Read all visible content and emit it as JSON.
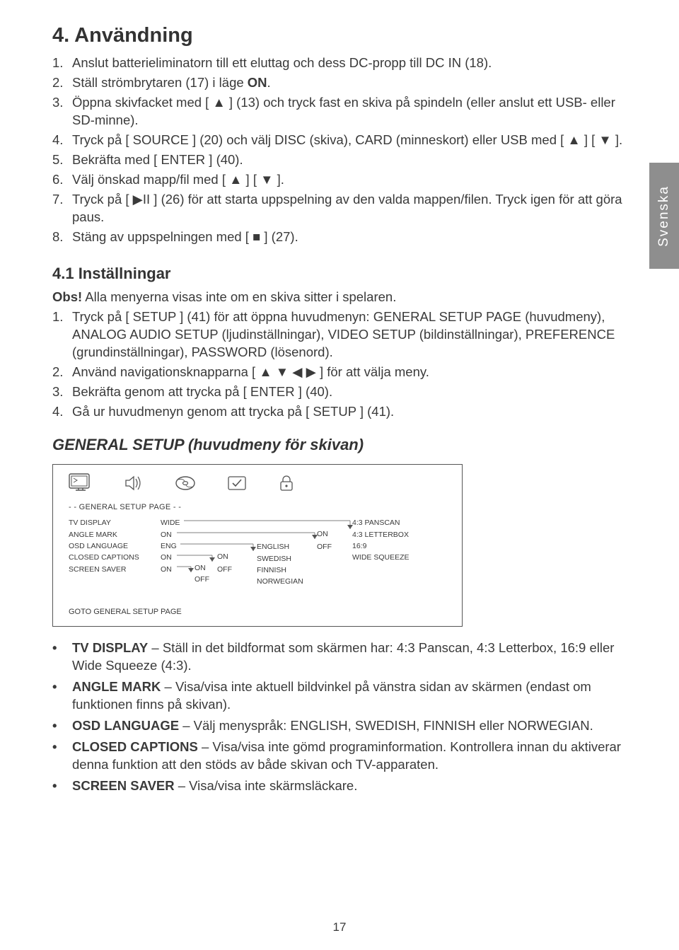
{
  "sideTab": "Svenska",
  "pageNumber": "17",
  "heading_main": "4. Användning",
  "steps_main": [
    "Anslut batterieliminatorn till ett eluttag och dess DC-propp till DC IN (18).",
    "Ställ strömbrytaren (17) i läge <b>ON</b>.",
    "Öppna skivfacket med [ ▲ ] (13) och tryck fast en skiva på spindeln (eller anslut ett USB- eller SD-minne).",
    "Tryck på [ SOURCE ] (20) och välj DISC (skiva), CARD (minneskort) eller USB med [ ▲ ] [ ▼ ].",
    "Bekräfta med [ ENTER ] (40).",
    "Välj önskad mapp/fil med [ ▲ ] [ ▼ ].",
    "Tryck på [ ▶II ] (26) för att starta uppspelning av den valda mappen/filen. Tryck igen för att göra paus.",
    "Stäng av uppspelningen med [ ■ ] (27)."
  ],
  "heading_41": "4.1 Inställningar",
  "obs_line": "<b>Obs!</b> Alla menyerna visas inte om en skiva sitter i spelaren.",
  "steps_41": [
    "Tryck på [ SETUP ] (41) för att öppna huvudmenyn: GENERAL SETUP PAGE (huvudmeny), ANALOG AUDIO SETUP (ljudinställningar), VIDEO SETUP (bildinställningar), PREFERENCE (grundinställningar), PASSWORD (lösenord).",
    "Använd navigationsknapparna [ ▲ ▼ ◀ ▶ ] för att välja meny.",
    "Bekräfta genom att trycka på [ ENTER ] (40).",
    "Gå ur huvudmenyn genom att trycka på [ SETUP ] (41)."
  ],
  "heading_general": "GENERAL SETUP (huvudmeny för skivan)",
  "setup": {
    "title": "- -  GENERAL SETUP PAGE  - -",
    "col1": [
      "TV DISPLAY",
      "ANGLE MARK",
      "OSD LANGUAGE",
      "CLOSED CAPTIONS",
      "SCREEN SAVER"
    ],
    "col2": [
      "WIDE",
      "ON",
      "ENG",
      "ON",
      "ON"
    ],
    "col3": [
      "ENGLISH",
      "SWEDISH",
      "FINNISH",
      "NORWEGIAN"
    ],
    "col4": [
      "4:3 PANSCAN",
      "4:3 LETTERBOX",
      "16:9",
      "WIDE SQUEEZE"
    ],
    "on": "ON",
    "off": "OFF",
    "footer": "GOTO GENERAL SETUP PAGE"
  },
  "bullets": [
    {
      "term": "TV DISPLAY",
      "desc": " – Ställ in det bildformat som skärmen har: 4:3 Panscan, 4:3 Letterbox, 16:9 eller Wide Squeeze (4:3)."
    },
    {
      "term": "ANGLE MARK",
      "desc": " – Visa/visa inte aktuell bildvinkel på vänstra sidan av skärmen (endast om funktionen finns på skivan)."
    },
    {
      "term": "OSD LANGUAGE",
      "desc": " – Välj menyspråk: ENGLISH, SWEDISH, FINNISH eller NORWEGIAN."
    },
    {
      "term": "CLOSED CAPTIONS",
      "desc": " – Visa/visa inte gömd programinformation. Kontrollera innan du aktiverar denna funktion att den stöds av både skivan och TV-apparaten."
    },
    {
      "term": "SCREEN SAVER",
      "desc": " – Visa/visa inte skärmsläckare."
    }
  ]
}
